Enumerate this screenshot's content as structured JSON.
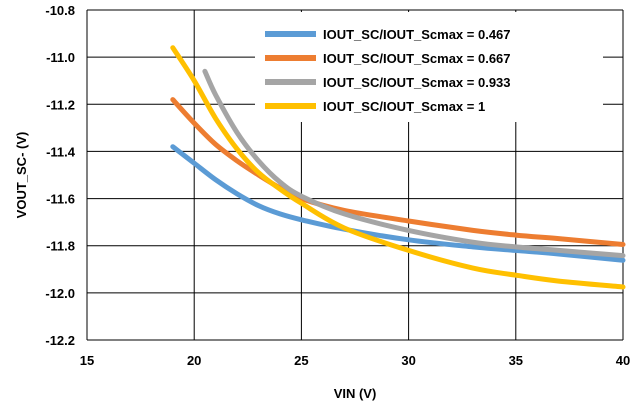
{
  "chart_data": {
    "type": "line",
    "title": "",
    "xlabel": "VIN (V)",
    "ylabel": "VOUT_SC- (V)",
    "xlim": [
      15,
      40
    ],
    "ylim": [
      -12.2,
      -10.8
    ],
    "xticks": [
      15,
      20,
      25,
      30,
      35,
      40
    ],
    "yticks": [
      -10.8,
      -11.0,
      -11.2,
      -11.4,
      -11.6,
      -11.8,
      -12.0,
      -12.2
    ],
    "ytick_labels": [
      "-10.8",
      "-11.0",
      "-11.2",
      "-11.4",
      "-11.6",
      "-11.8",
      "-12.0",
      "-12.2"
    ],
    "grid": true,
    "legend_position": "top-right",
    "series": [
      {
        "name": "IOUT_SC/IOUT_Scmax = 0.467",
        "color": "#5B9BD5",
        "points": [
          [
            19,
            -11.38
          ],
          [
            20,
            -11.45
          ],
          [
            21,
            -11.52
          ],
          [
            22,
            -11.58
          ],
          [
            23,
            -11.63
          ],
          [
            24,
            -11.665
          ],
          [
            25,
            -11.69
          ],
          [
            27,
            -11.73
          ],
          [
            30,
            -11.775
          ],
          [
            33,
            -11.805
          ],
          [
            35,
            -11.82
          ],
          [
            37,
            -11.835
          ],
          [
            40,
            -11.862
          ]
        ]
      },
      {
        "name": "IOUT_SC/IOUT_Scmax = 0.667",
        "color": "#ED7D31",
        "points": [
          [
            19,
            -11.18
          ],
          [
            20,
            -11.28
          ],
          [
            21,
            -11.37
          ],
          [
            22,
            -11.44
          ],
          [
            23,
            -11.5
          ],
          [
            24,
            -11.555
          ],
          [
            25,
            -11.6
          ],
          [
            27,
            -11.65
          ],
          [
            30,
            -11.695
          ],
          [
            33,
            -11.735
          ],
          [
            35,
            -11.755
          ],
          [
            37,
            -11.77
          ],
          [
            40,
            -11.795
          ]
        ]
      },
      {
        "name": "IOUT_SC/IOUT_Scmax = 0.933",
        "color": "#A5A5A5",
        "points": [
          [
            20.5,
            -11.06
          ],
          [
            21,
            -11.16
          ],
          [
            22,
            -11.32
          ],
          [
            23,
            -11.44
          ],
          [
            24,
            -11.53
          ],
          [
            25,
            -11.59
          ],
          [
            27,
            -11.665
          ],
          [
            30,
            -11.735
          ],
          [
            33,
            -11.785
          ],
          [
            35,
            -11.805
          ],
          [
            37,
            -11.82
          ],
          [
            40,
            -11.842
          ]
        ]
      },
      {
        "name": "IOUT_SC/IOUT_Scmax = 1",
        "color": "#FFC000",
        "points": [
          [
            19,
            -10.96
          ],
          [
            20,
            -11.1
          ],
          [
            21,
            -11.26
          ],
          [
            22,
            -11.39
          ],
          [
            23,
            -11.49
          ],
          [
            24,
            -11.56
          ],
          [
            25,
            -11.62
          ],
          [
            27,
            -11.725
          ],
          [
            30,
            -11.82
          ],
          [
            33,
            -11.895
          ],
          [
            35,
            -11.925
          ],
          [
            37,
            -11.95
          ],
          [
            40,
            -11.975
          ]
        ]
      }
    ]
  }
}
